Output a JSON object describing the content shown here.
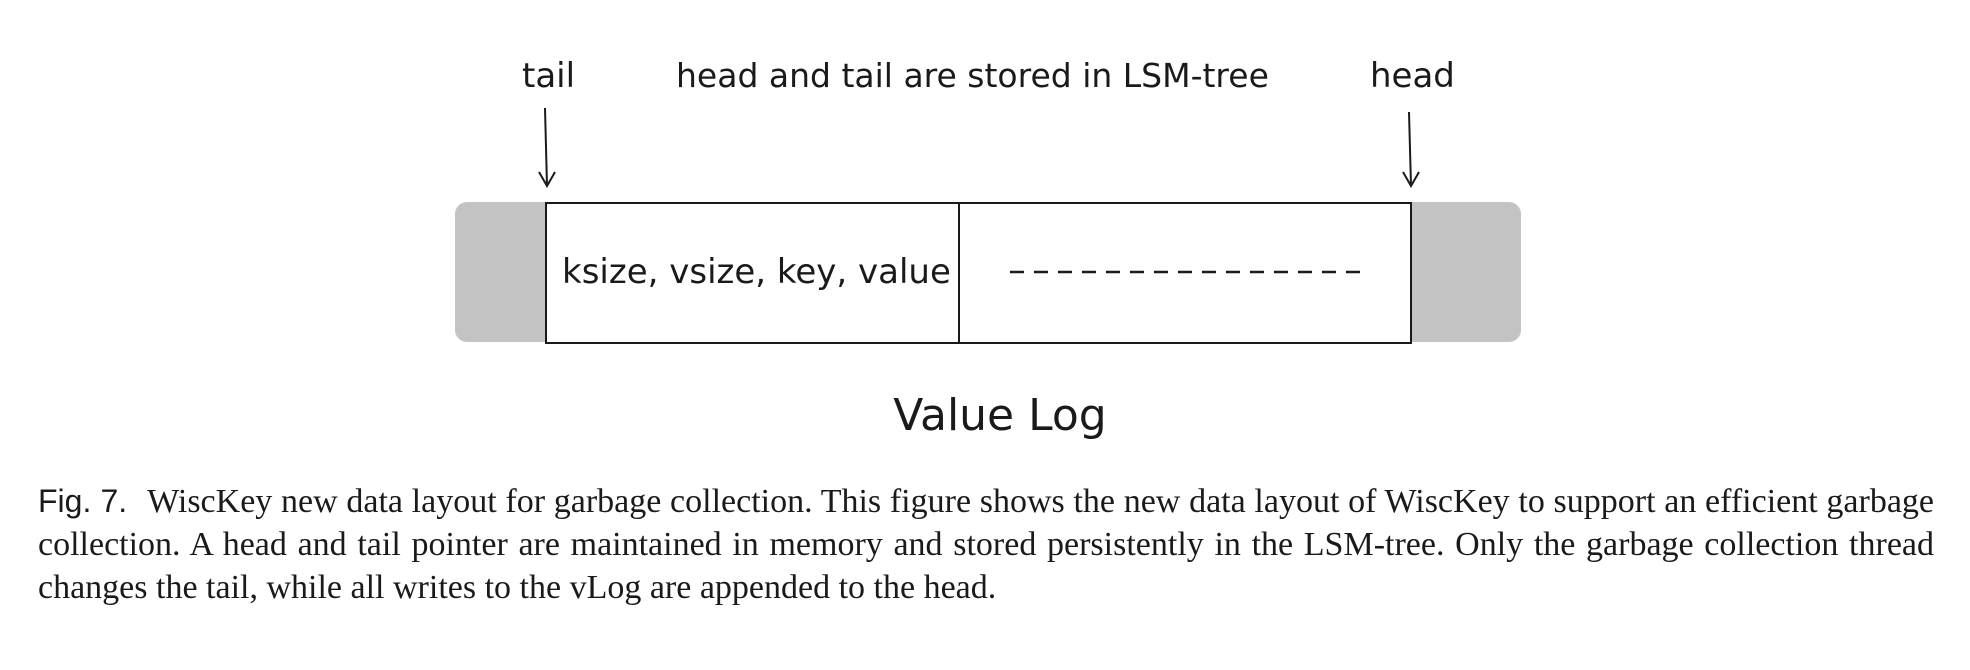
{
  "diagram": {
    "tail_label": "tail",
    "head_label": "head",
    "note": "head and tail are stored in LSM-tree",
    "record_fields": "ksize, vsize, key, value",
    "title": "Value Log",
    "colors": {
      "used_region": "#c3c3c3",
      "cell_fill": "#ffffff",
      "stroke": "#1a1a1a"
    }
  },
  "caption": {
    "figure_label": "Fig. 7.",
    "text": "WiscKey new data layout for garbage collection. This figure shows the new data layout of WiscKey to support an efficient garbage collection. A head and tail pointer are maintained in memory and stored persistently in the LSM-tree. Only the garbage collection thread changes the tail, while all writes to the vLog are appended to the head."
  }
}
